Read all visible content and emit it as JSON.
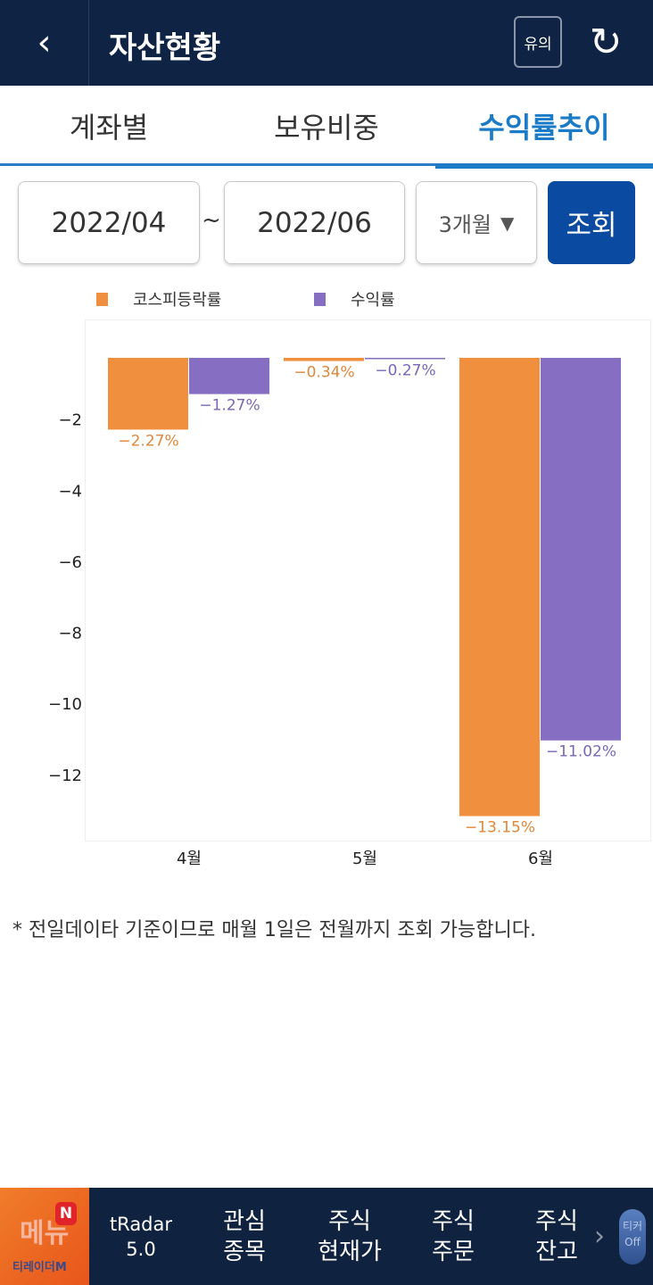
{
  "header": {
    "title": "자산현황",
    "back_icon": "chevron-left-icon",
    "notice_label": "유의",
    "refresh_icon": "refresh-icon"
  },
  "tabs": [
    {
      "label": "계좌별",
      "active": false
    },
    {
      "label": "보유비중",
      "active": false
    },
    {
      "label": "수익률추이",
      "active": true
    }
  ],
  "filter": {
    "start": "2022/04",
    "separator": "~",
    "end": "2022/06",
    "period": "3개월",
    "query_label": "조회"
  },
  "chart_data": {
    "type": "bar",
    "categories": [
      "4월",
      "5월",
      "6월"
    ],
    "series": [
      {
        "name": "코스피등락률",
        "color": "#f0903e",
        "values": [
          -2.27,
          -0.34,
          -13.15
        ],
        "labels": [
          "−2.27%",
          "−0.34%",
          "−13.15%"
        ]
      },
      {
        "name": "수익률",
        "color": "#866ec2",
        "values": [
          -1.27,
          -0.27,
          -11.02
        ],
        "labels": [
          "−1.27%",
          "−0.27%",
          "−11.02%"
        ]
      }
    ],
    "yticks": [
      {
        "v": -2,
        "label": "−2"
      },
      {
        "v": -4,
        "label": "−4"
      },
      {
        "v": -6,
        "label": "−6"
      },
      {
        "v": -8,
        "label": "−8"
      },
      {
        "v": -10,
        "label": "−10"
      },
      {
        "v": -12,
        "label": "−12"
      }
    ],
    "ylim": [
      -13.84,
      -0.25
    ],
    "legend": "top",
    "grid": false
  },
  "note": "* 전일데이타 기준이므로 매월 1일은 전월까지 조회 가능합니다.",
  "bottom_nav": {
    "menu_label": "메뉴",
    "menu_badge": "N",
    "brand": "티레이더M",
    "items": [
      "tRadar\n5.0",
      "관심\n종목",
      "주식\n현재가",
      "주식\n주문",
      "주식\n잔고"
    ],
    "more_icon": "chevron-right-icon",
    "ticker_label": "티커\nOff"
  }
}
